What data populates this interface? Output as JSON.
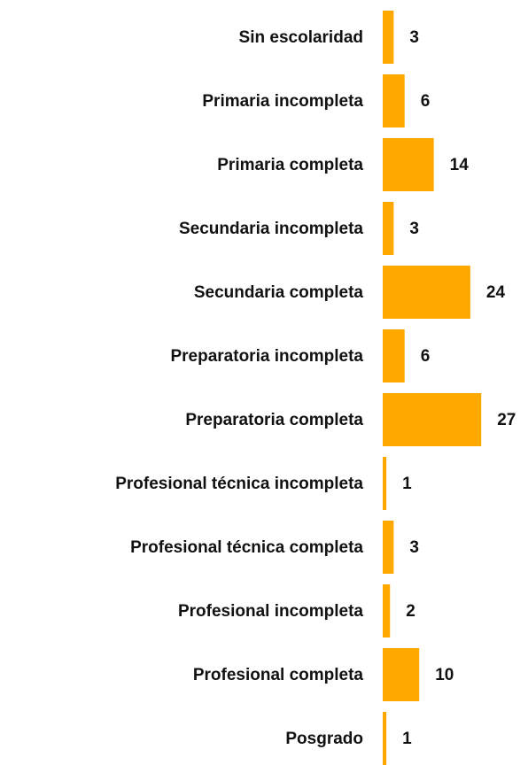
{
  "chart_data": {
    "type": "bar",
    "orientation": "horizontal",
    "categories": [
      "Sin escolaridad",
      "Primaria incompleta",
      "Primaria completa",
      "Secundaria incompleta",
      "Secundaria completa",
      "Preparatoria incompleta",
      "Preparatoria completa",
      "Profesional técnica incompleta",
      "Profesional técnica completa",
      "Profesional incompleta",
      "Profesional completa",
      "Posgrado"
    ],
    "values": [
      3,
      6,
      14,
      3,
      24,
      6,
      27,
      1,
      3,
      2,
      10,
      1
    ],
    "color": "#ffa800"
  }
}
